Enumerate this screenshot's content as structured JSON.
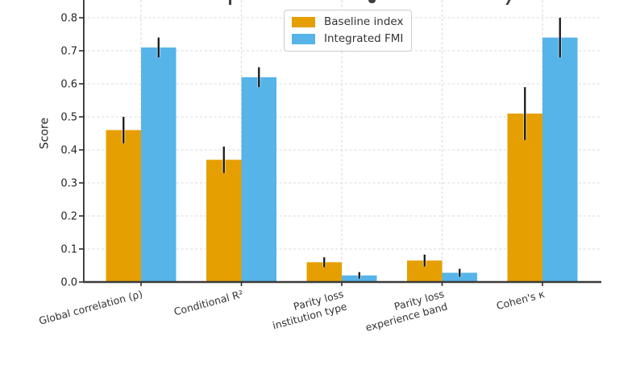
{
  "chart_data": {
    "type": "bar",
    "ylabel": "Score",
    "categories": [
      "Global correlation (ρ)",
      "Conditional R²",
      "Parity loss\ninstitution type",
      "Parity loss\nexperience band",
      "Cohen's κ"
    ],
    "series": [
      {
        "name": "Baseline index",
        "color": "#E69F00",
        "values": [
          0.46,
          0.37,
          0.06,
          0.065,
          0.51
        ],
        "errors": [
          0.04,
          0.04,
          0.015,
          0.018,
          0.08
        ]
      },
      {
        "name": "Integrated FMI",
        "color": "#56B4E9",
        "values": [
          0.71,
          0.62,
          0.02,
          0.028,
          0.74
        ],
        "errors": [
          0.03,
          0.03,
          0.01,
          0.012,
          0.06
        ]
      }
    ],
    "ylim": [
      0.0,
      0.85
    ],
    "yticks": [
      0.0,
      0.1,
      0.2,
      0.3,
      0.4,
      0.5,
      0.6,
      0.7,
      0.8
    ],
    "ytick_labels": [
      "0.0",
      "0.1",
      "0.2",
      "0.3",
      "0.4",
      "0.5",
      "0.6",
      "0.7",
      "0.8"
    ],
    "grid": true,
    "error_bars": true,
    "legend_position": "upper center",
    "colors": {
      "grid": "#d9d9d9",
      "axis": "#2e2e2e",
      "error_bar": "#141414",
      "legend_border": "#cccccc",
      "text": "#262626"
    }
  }
}
